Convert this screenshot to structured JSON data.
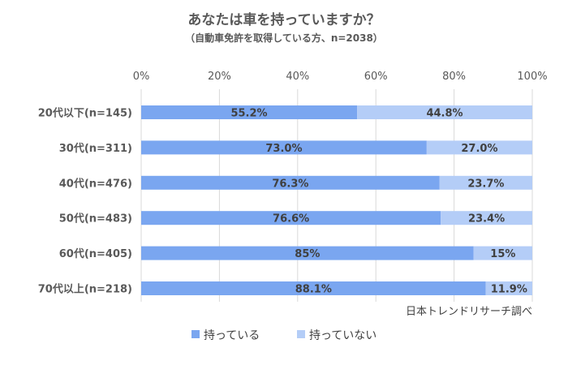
{
  "chart_data": {
    "type": "bar",
    "orientation": "horizontal",
    "stacked": true,
    "title": "あなたは車を持っていますか？",
    "subtitle": "（自動車免許を取得している方、n=2038）",
    "categories": [
      "20代以下(n=145)",
      "30代(n=311)",
      "40代(n=476)",
      "50代(n=483)",
      "60代(n=405)",
      "70代以上(n=218)"
    ],
    "series": [
      {
        "name": "持っている",
        "color": "#7aa6f0",
        "values": [
          55.2,
          73.0,
          76.3,
          76.6,
          85,
          88.1
        ],
        "labels": [
          "55.2%",
          "73.0%",
          "76.3%",
          "76.6%",
          "85%",
          "88.1%"
        ]
      },
      {
        "name": "持っていない",
        "color": "#b4cdf7",
        "values": [
          44.8,
          27.0,
          23.7,
          23.4,
          15,
          11.9
        ],
        "labels": [
          "44.8%",
          "27.0%",
          "23.7%",
          "23.4%",
          "15%",
          "11.9%"
        ]
      }
    ],
    "xlim": [
      0,
      100
    ],
    "xticks": [
      "0%",
      "20%",
      "40%",
      "60%",
      "80%",
      "100%"
    ],
    "grid": true,
    "legend": "bottom",
    "source": "日本トレンドリサーチ調べ"
  }
}
